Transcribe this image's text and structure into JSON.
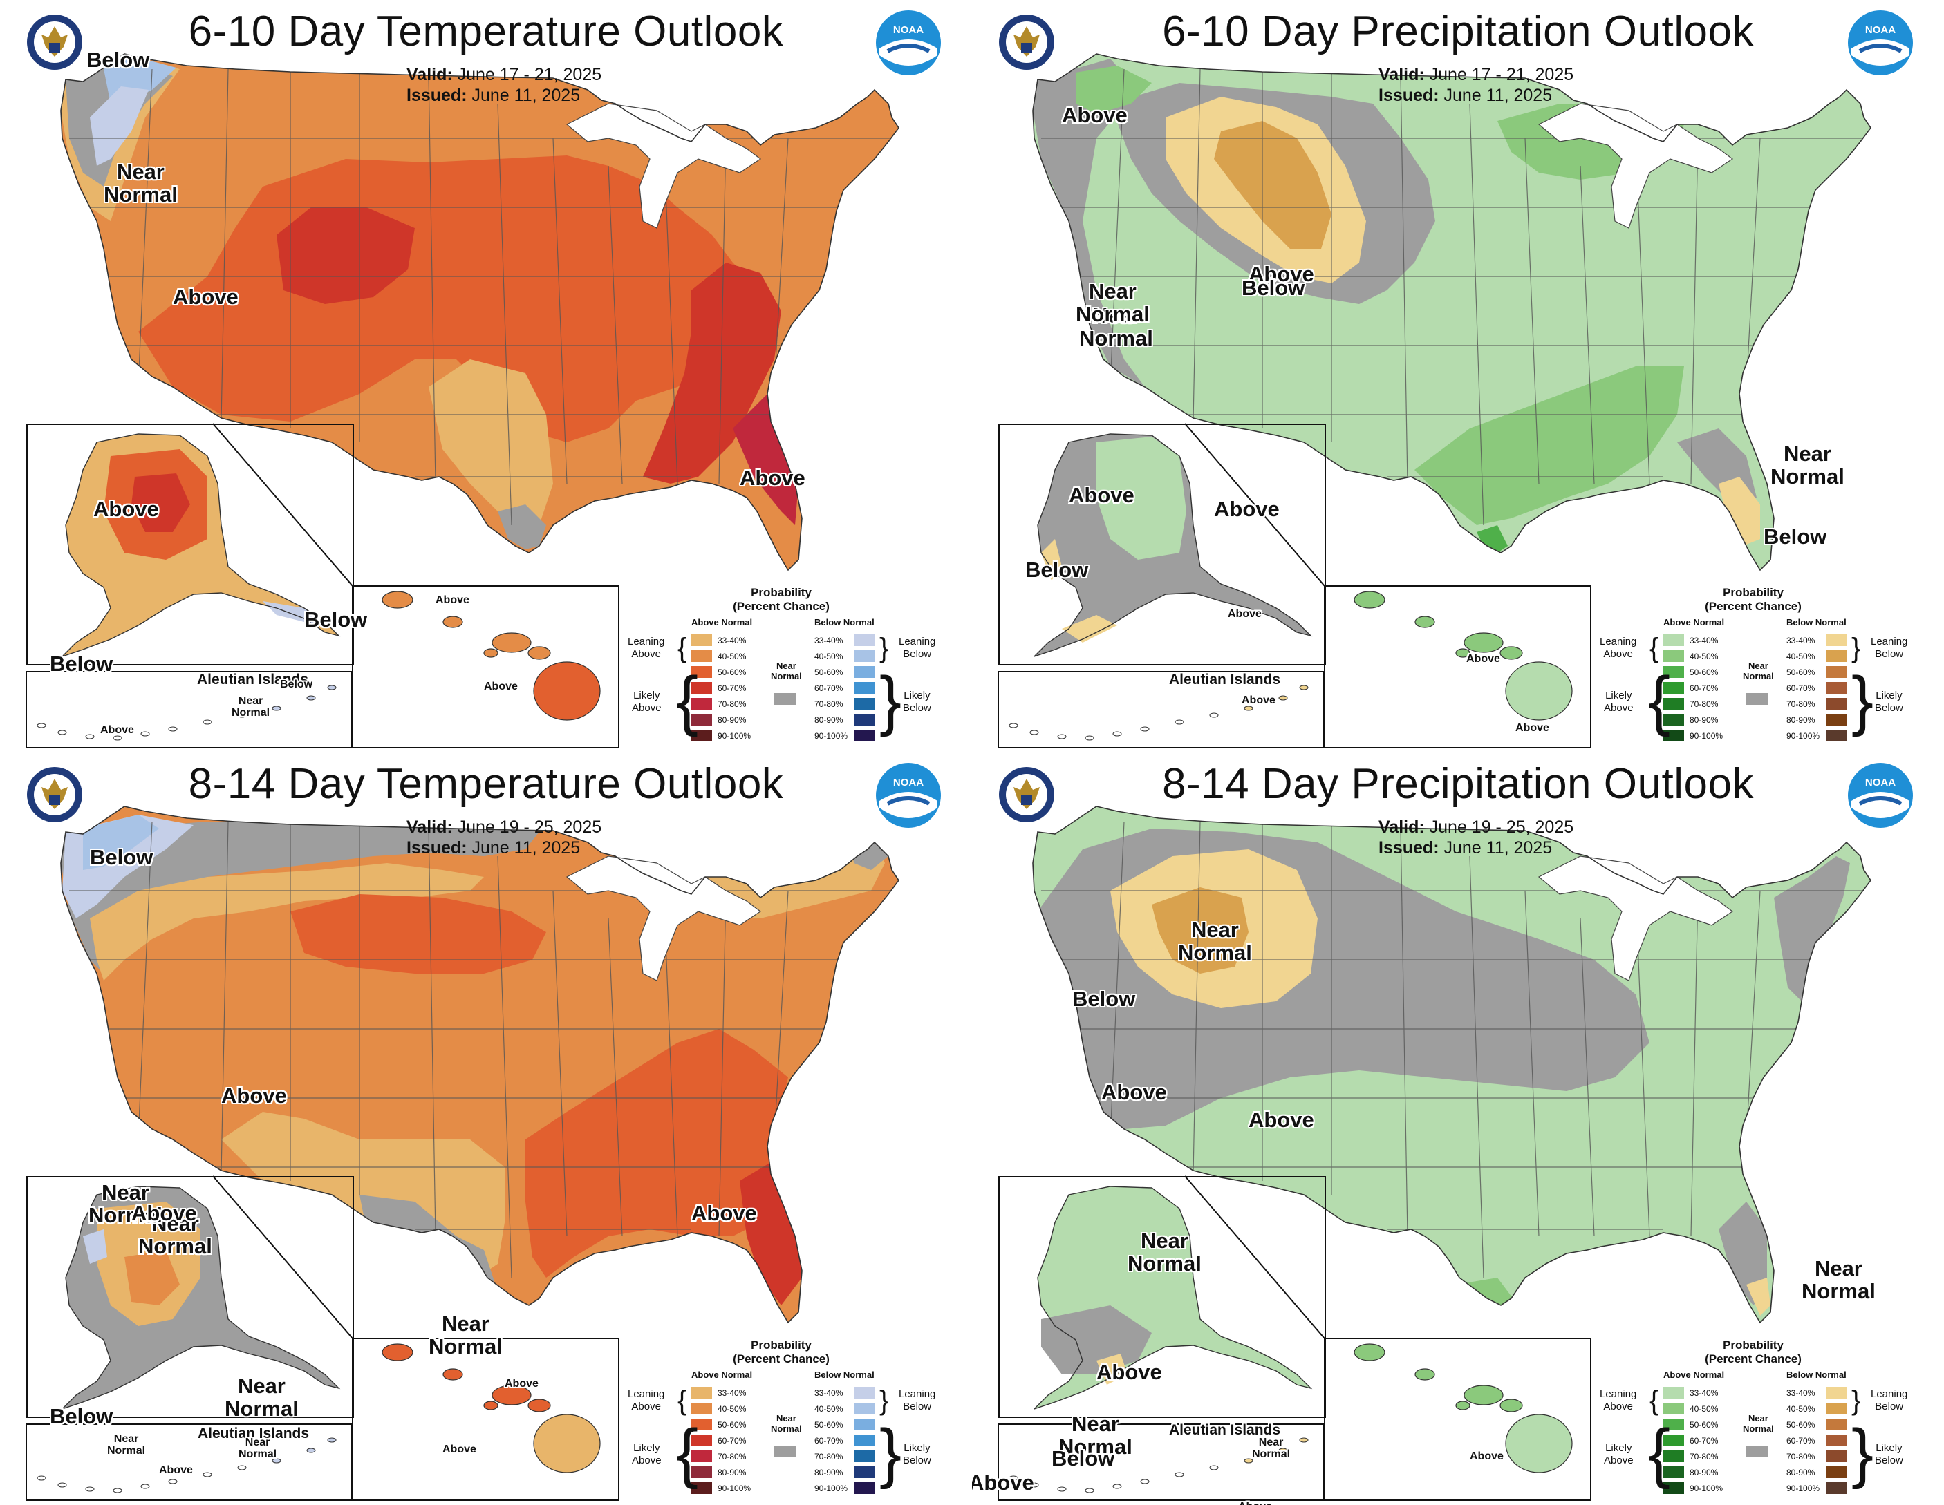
{
  "panels": [
    {
      "title": "6-10 Day Temperature Outlook",
      "valid_label": "Valid:",
      "valid_value": "June 17 - 21, 2025",
      "issued_label": "Issued:",
      "issued_value": "June 11, 2025",
      "labels": [
        {
          "text": "Below"
        },
        {
          "text": "Near\nNormal"
        },
        {
          "text": "Above"
        },
        {
          "text": "Above"
        },
        {
          "text": "Above"
        },
        {
          "text": "Below"
        },
        {
          "text": "Below"
        },
        {
          "text": "Aleutian Islands"
        },
        {
          "text": "Below"
        },
        {
          "text": "Near\nNormal"
        },
        {
          "text": "Above"
        },
        {
          "text": "Above"
        },
        {
          "text": "Above"
        }
      ]
    },
    {
      "title": "6-10 Day Precipitation Outlook",
      "valid_label": "Valid:",
      "valid_value": "June 17 - 21, 2025",
      "issued_label": "Issued:",
      "issued_value": "June 11, 2025",
      "labels": [
        {
          "text": "Above"
        },
        {
          "text": "Above"
        },
        {
          "text": "Near\nNormal"
        },
        {
          "text": "Below"
        },
        {
          "text": "Near\nNormal"
        },
        {
          "text": "Below"
        },
        {
          "text": "Above"
        },
        {
          "text": "Above"
        },
        {
          "text": "Near\nNormal"
        },
        {
          "text": "Below"
        },
        {
          "text": "Aleutian Islands"
        },
        {
          "text": "Above"
        },
        {
          "text": "Above"
        },
        {
          "text": "Above"
        },
        {
          "text": "Above"
        }
      ]
    },
    {
      "title": "8-14 Day Temperature Outlook",
      "valid_label": "Valid:",
      "valid_value": "June 19 - 25, 2025",
      "issued_label": "Issued:",
      "issued_value": "June 11, 2025",
      "labels": [
        {
          "text": "Below"
        },
        {
          "text": "Near\nNormal"
        },
        {
          "text": "Above"
        },
        {
          "text": "Near\nNormal"
        },
        {
          "text": "Above"
        },
        {
          "text": "Near\nNormal"
        },
        {
          "text": "Above"
        },
        {
          "text": "Near\nNormal"
        },
        {
          "text": "Below"
        },
        {
          "text": "Aleutian Islands"
        },
        {
          "text": "Near\nNormal"
        },
        {
          "text": "Near\nNormal"
        },
        {
          "text": "Above"
        },
        {
          "text": "Above"
        },
        {
          "text": "Above"
        }
      ]
    },
    {
      "title": "8-14 Day Precipitation Outlook",
      "valid_label": "Valid:",
      "valid_value": "June 19 - 25, 2025",
      "issued_label": "Issued:",
      "issued_value": "June 11, 2025",
      "labels": [
        {
          "text": "Below"
        },
        {
          "text": "Near\nNormal"
        },
        {
          "text": "Near\nNormal"
        },
        {
          "text": "Above"
        },
        {
          "text": "Above"
        },
        {
          "text": "Near\nNormal"
        },
        {
          "text": "Above"
        },
        {
          "text": "Near\nNormal"
        },
        {
          "text": "Below"
        },
        {
          "text": "Above"
        },
        {
          "text": "Aleutian Islands"
        },
        {
          "text": "Near\nNormal"
        },
        {
          "text": "Above"
        },
        {
          "text": "Above"
        },
        {
          "text": "Above"
        }
      ]
    }
  ],
  "legend": {
    "title": "Probability\n(Percent Chance)",
    "above_normal": "Above Normal",
    "below_normal": "Below Normal",
    "leaning_above": "Leaning\nAbove",
    "likely_above": "Likely\nAbove",
    "leaning_below": "Leaning\nBelow",
    "likely_below": "Likely\nBelow",
    "near_normal": "Near\nNormal",
    "ranges": [
      "33-40%",
      "40-50%",
      "50-60%",
      "60-70%",
      "70-80%",
      "80-90%",
      "90-100%"
    ],
    "temp_above_colors": [
      "#e8b56a",
      "#e48c47",
      "#e2602f",
      "#cf3629",
      "#c0283c",
      "#8f2a3a",
      "#5c1d1d"
    ],
    "temp_below_colors": [
      "#c5cfe8",
      "#a8c3e6",
      "#7aaee0",
      "#3f93d2",
      "#1d6aa6",
      "#1f3a7a",
      "#23174f"
    ],
    "precip_above_colors": [
      "#b5dcae",
      "#8bc97c",
      "#4fb04a",
      "#2e9a2e",
      "#1f7d24",
      "#1a6420",
      "#124a17"
    ],
    "precip_below_colors": [
      "#f1d591",
      "#d9a24e",
      "#c4793c",
      "#a85b35",
      "#8c4a2c",
      "#7a3f12",
      "#5a3a2c"
    ],
    "near_normal_color": "#9e9e9e"
  },
  "colors": {
    "t_lean_above": "#e8b56a",
    "t_above_40": "#e48c47",
    "t_above_50": "#e2602f",
    "t_above_60": "#cf3629",
    "t_above_70": "#c0283c",
    "t_lean_below": "#c5cfe8",
    "t_below_40": "#a8c3e6",
    "p_lean_above": "#b5dcae",
    "p_above_40": "#8bc97c",
    "p_above_50": "#4fb04a",
    "p_lean_below": "#f1d591",
    "p_below_40": "#d9a24e",
    "near_normal": "#9e9e9e",
    "lakes": "#ffffff",
    "borders": "#444444"
  }
}
